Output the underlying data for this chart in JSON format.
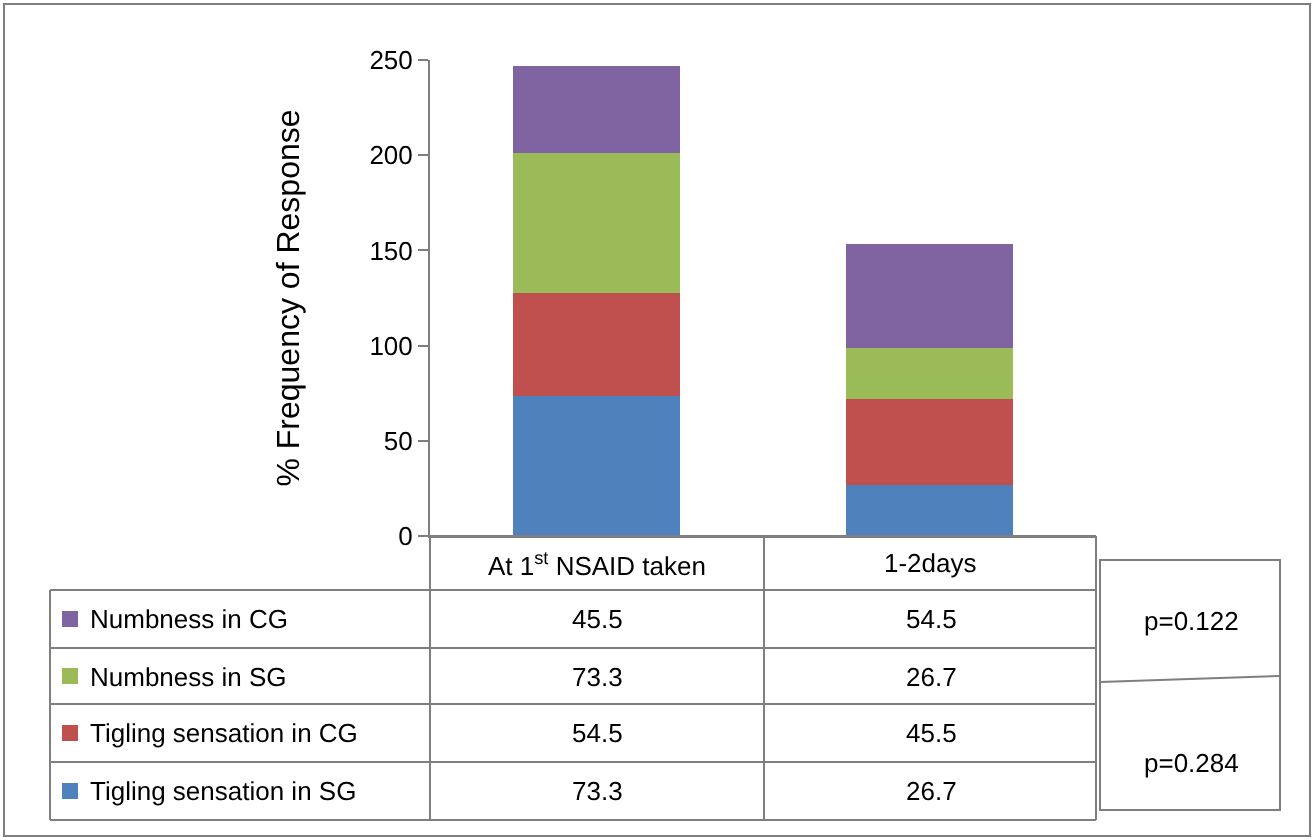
{
  "chart_data": {
    "type": "bar",
    "stacked": true,
    "ylabel": "% Frequency of Response",
    "categories": [
      "At 1$^{st}$ NSAID taken",
      "1-2days"
    ],
    "series": [
      {
        "name": "Tigling sensation in SG",
        "color": "#4f81bd",
        "values": [
          73.3,
          26.7
        ],
        "value_labels": [
          "73.3",
          "26.7"
        ]
      },
      {
        "name": "Tigling sensation in CG",
        "color": "#c0504d",
        "values": [
          54.5,
          45.5
        ],
        "value_labels": [
          "54.5",
          "45.5"
        ]
      },
      {
        "name": "Numbness in SG",
        "color": "#9bbb59",
        "values": [
          73.3,
          26.7
        ],
        "value_labels": [
          "73.3",
          "26.7"
        ]
      },
      {
        "name": "Numbness in CG",
        "color": "#8064a2",
        "values": [
          45.5,
          54.5
        ],
        "value_labels": [
          "45.5",
          "54.5"
        ]
      }
    ],
    "ylim": [
      0,
      250
    ],
    "yticks": [
      0,
      50,
      100,
      150,
      200,
      250
    ],
    "legend": "bottom left",
    "annotations": [
      "p=0.122",
      "p=0.284"
    ]
  }
}
